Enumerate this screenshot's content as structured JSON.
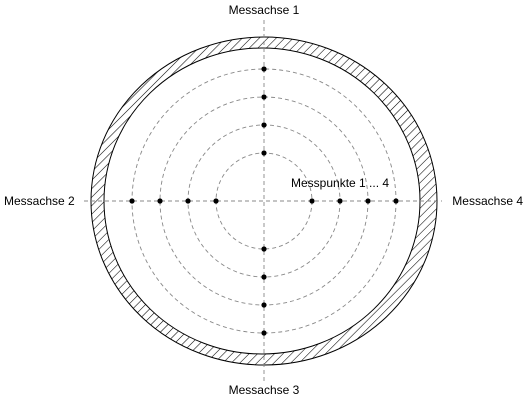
{
  "labels": {
    "axis_top": "Messachse 1",
    "axis_left": "Messachse 2",
    "axis_bottom": "Messachse 3",
    "axis_right": "Messachse 4",
    "points_note": "Messpunkte 1 ... 4"
  },
  "measurement": {
    "axes": 4,
    "points_per_axis": 4,
    "ring_count": 4
  },
  "colors": {
    "line": "#000000",
    "dashed": "#888888",
    "background": "#ffffff"
  }
}
